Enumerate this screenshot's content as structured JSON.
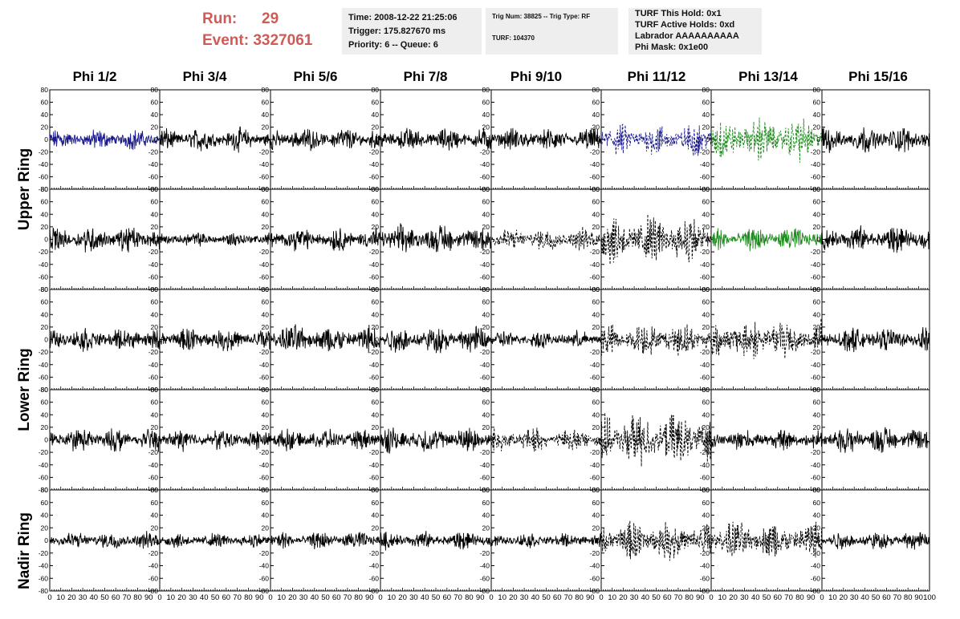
{
  "header": {
    "run_label": "Run:",
    "run_value": "29",
    "event_label": "Event:",
    "event_value": "3327061",
    "time_line": "Time: 2008-12-22 21:25:06",
    "trigger_line": "Trigger: 175.827670 ms",
    "priority_line": "Priority: 6 -- Queue: 6",
    "trig_num_line": "Trig Num: 38825 -- Trig Type: RF",
    "turf_line": "TURF: 104370",
    "turf_hold_line": "TURF This Hold: 0x1",
    "turf_active_line": "TURF Active Holds: 0xd",
    "labrador_line": "Labrador AAAAAAAAAA",
    "phi_mask_line": "Phi Mask: 0x1e00"
  },
  "columns": [
    "Phi 1/2",
    "Phi 3/4",
    "Phi 5/6",
    "Phi 7/8",
    "Phi 9/10",
    "Phi 11/12",
    "Phi 13/14",
    "Phi 15/16"
  ],
  "ring_labels": [
    "Upper Ring",
    "Lower Ring",
    "Nadir Ring"
  ],
  "colors": {
    "run_text": "#d05a55",
    "info_box": "#eeeeee",
    "trace_default": "#000000",
    "trace_blue": "#1a1a8c",
    "trace_green": "#1e8c1e"
  },
  "chart_data": {
    "type": "line",
    "rows": 5,
    "cols": 8,
    "ylim": [
      -80,
      80
    ],
    "xlim": [
      0,
      100
    ],
    "ytick_labels": [
      "80",
      "60",
      "40",
      "20",
      "0",
      "-20",
      "-40",
      "-60",
      "-80"
    ],
    "xtick_labels": [
      "0",
      "10",
      "20",
      "30",
      "40",
      "50",
      "60",
      "70",
      "80",
      "90",
      "100"
    ],
    "grid": false,
    "panels": [
      [
        {
          "style": "solid",
          "color": "#1a1a8c",
          "amp": 14
        },
        {
          "style": "solid",
          "color": "#000000",
          "amp": 16
        },
        {
          "style": "solid",
          "color": "#000000",
          "amp": 16
        },
        {
          "style": "solid",
          "color": "#000000",
          "amp": 16
        },
        {
          "style": "solid",
          "color": "#000000",
          "amp": 16
        },
        {
          "style": "dashed",
          "color": "#1a1a8c",
          "amp": 22
        },
        {
          "style": "dashed",
          "color": "#1e8c1e",
          "amp": 30
        },
        {
          "style": "solid",
          "color": "#000000",
          "amp": 18
        }
      ],
      [
        {
          "style": "solid",
          "color": "#000000",
          "amp": 18
        },
        {
          "style": "solid",
          "color": "#000000",
          "amp": 10
        },
        {
          "style": "solid",
          "color": "#000000",
          "amp": 16
        },
        {
          "style": "solid",
          "color": "#000000",
          "amp": 20
        },
        {
          "style": "dashed",
          "color": "#000000",
          "amp": 16
        },
        {
          "style": "dashed",
          "color": "#000000",
          "amp": 34
        },
        {
          "style": "solid",
          "color": "#1e8c1e",
          "amp": 16
        },
        {
          "style": "solid",
          "color": "#000000",
          "amp": 18
        }
      ],
      [
        {
          "style": "solid",
          "color": "#000000",
          "amp": 16
        },
        {
          "style": "solid",
          "color": "#000000",
          "amp": 16
        },
        {
          "style": "solid",
          "color": "#000000",
          "amp": 20
        },
        {
          "style": "solid",
          "color": "#000000",
          "amp": 18
        },
        {
          "style": "solid",
          "color": "#000000",
          "amp": 12
        },
        {
          "style": "dashed",
          "color": "#000000",
          "amp": 22
        },
        {
          "style": "dashed",
          "color": "#000000",
          "amp": 28
        },
        {
          "style": "solid",
          "color": "#000000",
          "amp": 16
        }
      ],
      [
        {
          "style": "solid",
          "color": "#000000",
          "amp": 16
        },
        {
          "style": "solid",
          "color": "#000000",
          "amp": 14
        },
        {
          "style": "solid",
          "color": "#000000",
          "amp": 14
        },
        {
          "style": "solid",
          "color": "#000000",
          "amp": 18
        },
        {
          "style": "dashed",
          "color": "#000000",
          "amp": 16
        },
        {
          "style": "dashed",
          "color": "#000000",
          "amp": 36
        },
        {
          "style": "solid",
          "color": "#000000",
          "amp": 14
        },
        {
          "style": "solid",
          "color": "#000000",
          "amp": 18
        }
      ],
      [
        {
          "style": "solid",
          "color": "#000000",
          "amp": 12
        },
        {
          "style": "solid",
          "color": "#000000",
          "amp": 10
        },
        {
          "style": "solid",
          "color": "#000000",
          "amp": 12
        },
        {
          "style": "solid",
          "color": "#000000",
          "amp": 12
        },
        {
          "style": "solid",
          "color": "#000000",
          "amp": 10
        },
        {
          "style": "dashed",
          "color": "#000000",
          "amp": 26
        },
        {
          "style": "dashed",
          "color": "#000000",
          "amp": 26
        },
        {
          "style": "solid",
          "color": "#000000",
          "amp": 12
        }
      ]
    ]
  }
}
